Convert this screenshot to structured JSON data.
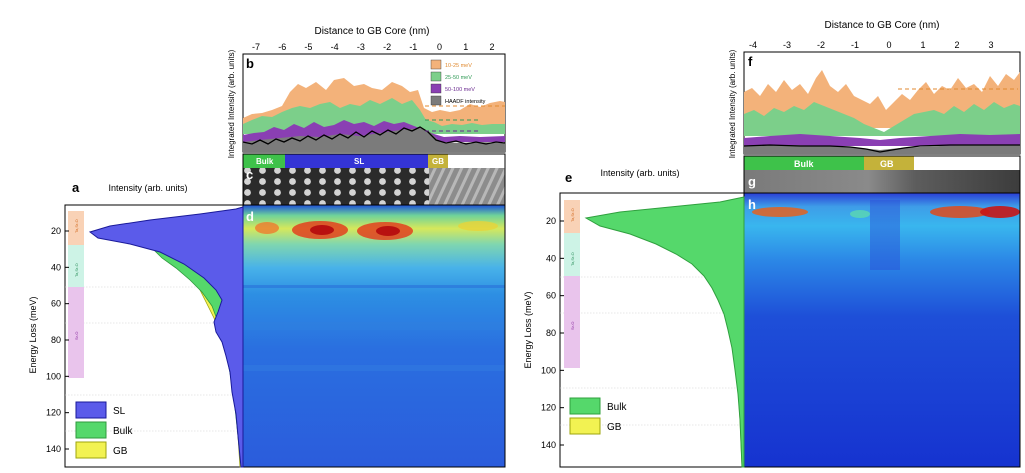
{
  "colors": {
    "sl": "#5b5bea",
    "bulk": "#55d86b",
    "gb": "#f2f252",
    "band1": "#f3b27a",
    "band2": "#7ccf8a",
    "band3": "#8a3fb3",
    "haadf": "#7b7b7b"
  },
  "left_panel": {
    "labels": {
      "a": "a",
      "b": "b",
      "c": "c",
      "d": "d"
    },
    "top_axis_title": "Distance to GB Core (nm)",
    "top_ticks": [
      "-7",
      "-6",
      "-5",
      "-4",
      "-3",
      "-2",
      "-1",
      "0",
      "1",
      "2"
    ],
    "b_ylabel": "Integrated Intensity (arb. units)",
    "b_legend": [
      {
        "label": "10-25 meV",
        "color_key": "band1"
      },
      {
        "label": "25-50 meV",
        "color_key": "band2"
      },
      {
        "label": "50-100 meV",
        "color_key": "band3"
      },
      {
        "label": "HAADF intensity",
        "color_key": "haadf"
      }
    ],
    "c_bar_labels": {
      "bulk": "Bulk",
      "sl": "SL",
      "gb": "GB"
    },
    "a_title": "Intensity (arb. units)",
    "a_ylabel": "Energy Loss (meV)",
    "a_yticks": [
      "20",
      "40",
      "60",
      "80",
      "100",
      "120",
      "140"
    ],
    "a_region_labels": [
      "Ta,Sr-O",
      "Ta,Sr-O",
      "Sr-O"
    ],
    "a_legend": [
      {
        "label": "SL",
        "color_key": "sl"
      },
      {
        "label": "Bulk",
        "color_key": "bulk"
      },
      {
        "label": "GB",
        "color_key": "gb"
      }
    ]
  },
  "right_panel": {
    "labels": {
      "e": "e",
      "f": "f",
      "g": "g",
      "h": "h"
    },
    "top_axis_title": "Distance to GB Core (nm)",
    "top_ticks": [
      "-4",
      "-3",
      "-2",
      "-1",
      "0",
      "1",
      "2",
      "3"
    ],
    "f_ylabel": "Integrated Intensity (arb. units)",
    "g_bar_labels": {
      "bulk": "Bulk",
      "gb": "GB"
    },
    "e_title": "Intensity (arb. units)",
    "e_ylabel": "Energy Loss (meV)",
    "e_yticks": [
      "20",
      "40",
      "60",
      "80",
      "100",
      "120",
      "140"
    ],
    "e_region_labels": [
      "Ta,Sr-O",
      "Ta,Sr-O",
      "Sr-O"
    ],
    "e_legend": [
      {
        "label": "Bulk",
        "color_key": "bulk"
      },
      {
        "label": "GB",
        "color_key": "gb"
      }
    ]
  }
}
